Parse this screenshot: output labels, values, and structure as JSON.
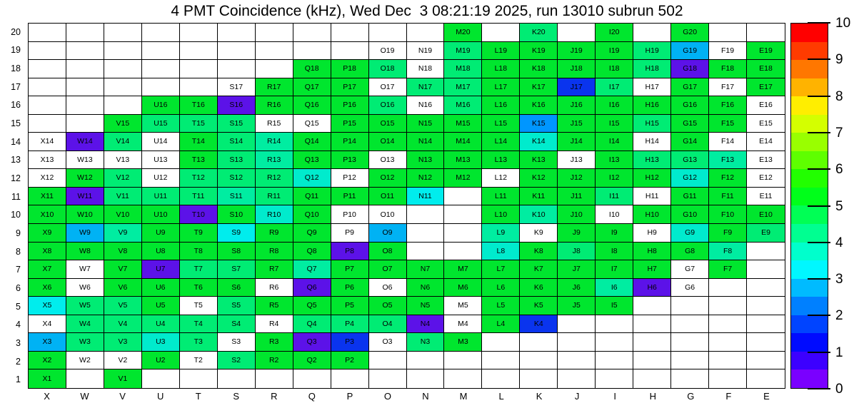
{
  "title": "4 PMT Coincidence (kHz), Wed Dec  3 08:21:19 2025, run 13010 subrun 502",
  "chart_data": {
    "type": "heatmap",
    "title": "4 PMT Coincidence (kHz), Wed Dec  3 08:21:19 2025, run 13010 subrun 502",
    "unit": "kHz",
    "columns": [
      "X",
      "W",
      "V",
      "U",
      "T",
      "S",
      "R",
      "Q",
      "P",
      "O",
      "N",
      "M",
      "L",
      "K",
      "J",
      "I",
      "H",
      "G",
      "F",
      "E"
    ],
    "rows": [
      20,
      19,
      18,
      17,
      16,
      15,
      14,
      13,
      12,
      11,
      10,
      9,
      8,
      7,
      6,
      5,
      4,
      3,
      2,
      1
    ],
    "cell_code_legend": {
      "": "empty bin (no tower)",
      "w": "white bin with label (zero / no data)",
      "g": "green",
      "s": "spring-green",
      "t": "teal-green",
      "q": "turquoise",
      "c": "cyan",
      "d": "deep-sky-blue",
      "o": "dodger-blue",
      "b": "blue",
      "p": "purple"
    },
    "palette": {
      "g": {
        "hex": "#00e62e",
        "approx_kHz": 5.2
      },
      "s": {
        "hex": "#00ec74",
        "approx_kHz": 4.5
      },
      "t": {
        "hex": "#00eda1",
        "approx_kHz": 4.0
      },
      "q": {
        "hex": "#00ebcd",
        "approx_kHz": 3.6
      },
      "c": {
        "hex": "#00eded",
        "approx_kHz": 3.2
      },
      "d": {
        "hex": "#00b2f4",
        "approx_kHz": 2.8
      },
      "o": {
        "hex": "#0096ff",
        "approx_kHz": 2.4
      },
      "b": {
        "hex": "#0a34ee",
        "approx_kHz": 1.5
      },
      "p": {
        "hex": "#5c12e8",
        "approx_kHz": 0.5
      }
    },
    "cells": [
      [
        "",
        "",
        "",
        "",
        "",
        "",
        "",
        "",
        "",
        "",
        "",
        "g",
        "",
        "s",
        "",
        "g",
        "",
        "g",
        "",
        ""
      ],
      [
        "",
        "",
        "",
        "",
        "",
        "",
        "",
        "",
        "",
        "w",
        "w",
        "s",
        "g",
        "g",
        "g",
        "g",
        "s",
        "d",
        "w",
        "g"
      ],
      [
        "",
        "",
        "",
        "",
        "",
        "",
        "",
        "g",
        "g",
        "s",
        "w",
        "s",
        "g",
        "g",
        "g",
        "g",
        "s",
        "p",
        "g",
        "g"
      ],
      [
        "",
        "",
        "",
        "",
        "",
        "w",
        "g",
        "g",
        "g",
        "w",
        "s",
        "s",
        "g",
        "g",
        "b",
        "s",
        "w",
        "g",
        "w",
        "g"
      ],
      [
        "",
        "",
        "",
        "g",
        "g",
        "p",
        "g",
        "g",
        "g",
        "s",
        "w",
        "s",
        "g",
        "g",
        "g",
        "g",
        "g",
        "g",
        "g",
        "w"
      ],
      [
        "",
        "",
        "g",
        "s",
        "s",
        "s",
        "w",
        "w",
        "g",
        "g",
        "g",
        "g",
        "g",
        "o",
        "g",
        "g",
        "s",
        "g",
        "g",
        "w"
      ],
      [
        "w",
        "p",
        "s",
        "w",
        "g",
        "s",
        "t",
        "g",
        "g",
        "g",
        "g",
        "g",
        "g",
        "q",
        "g",
        "g",
        "w",
        "g",
        "w",
        "w"
      ],
      [
        "w",
        "w",
        "w",
        "w",
        "g",
        "s",
        "t",
        "g",
        "g",
        "w",
        "g",
        "g",
        "g",
        "g",
        "w",
        "g",
        "s",
        "s",
        "t",
        "w"
      ],
      [
        "w",
        "g",
        "s",
        "w",
        "s",
        "s",
        "s",
        "q",
        "w",
        "g",
        "g",
        "g",
        "w",
        "g",
        "g",
        "g",
        "g",
        "q",
        "g",
        "w"
      ],
      [
        "g",
        "p",
        "s",
        "s",
        "s",
        "t",
        "s",
        "g",
        "g",
        "g",
        "c",
        "",
        "g",
        "g",
        "g",
        "s",
        "w",
        "g",
        "g",
        "w"
      ],
      [
        "g",
        "g",
        "g",
        "g",
        "p",
        "g",
        "q",
        "g",
        "w",
        "w",
        "",
        "",
        "g",
        "t",
        "g",
        "w",
        "g",
        "g",
        "g",
        "g"
      ],
      [
        "g",
        "d",
        "t",
        "g",
        "g",
        "c",
        "g",
        "g",
        "w",
        "d",
        "",
        "",
        "t",
        "w",
        "g",
        "g",
        "w",
        "q",
        "g",
        "s"
      ],
      [
        "g",
        "g",
        "g",
        "g",
        "g",
        "g",
        "g",
        "g",
        "p",
        "g",
        "",
        "",
        "q",
        "g",
        "s",
        "g",
        "g",
        "g",
        "t",
        ""
      ],
      [
        "g",
        "w",
        "g",
        "p",
        "s",
        "s",
        "g",
        "t",
        "g",
        "g",
        "g",
        "g",
        "g",
        "g",
        "g",
        "g",
        "g",
        "w",
        "g",
        ""
      ],
      [
        "g",
        "w",
        "g",
        "g",
        "g",
        "g",
        "w",
        "p",
        "g",
        "w",
        "g",
        "g",
        "g",
        "g",
        "g",
        "t",
        "p",
        "w",
        "",
        ""
      ],
      [
        "c",
        "s",
        "s",
        "g",
        "w",
        "s",
        "g",
        "g",
        "g",
        "g",
        "g",
        "w",
        "g",
        "g",
        "g",
        "g",
        "",
        "",
        "",
        ""
      ],
      [
        "w",
        "s",
        "s",
        "s",
        "s",
        "s",
        "w",
        "s",
        "s",
        "s",
        "p",
        "w",
        "g",
        "b",
        "",
        "",
        "",
        "",
        "",
        ""
      ],
      [
        "d",
        "s",
        "s",
        "q",
        "s",
        "w",
        "g",
        "p",
        "b",
        "w",
        "s",
        "g",
        "",
        "",
        "",
        "",
        "",
        "",
        "",
        ""
      ],
      [
        "g",
        "w",
        "w",
        "g",
        "w",
        "s",
        "g",
        "g",
        "g",
        "",
        "",
        "",
        "",
        "",
        "",
        "",
        "",
        "",
        "",
        ""
      ],
      [
        "g",
        "",
        "g",
        "",
        "",
        "",
        "",
        "",
        "",
        "",
        "",
        "",
        "",
        "",
        "",
        "",
        "",
        "",
        "",
        ""
      ]
    ],
    "colorbar": {
      "min": 0,
      "max": 10,
      "tick_labels_top_to_bottom": [
        "10",
        "9",
        "8",
        "7",
        "6",
        "5",
        "4",
        "3",
        "2",
        "1",
        "0"
      ],
      "bands_top_to_bottom": [
        "#ff0000",
        "#ff3b00",
        "#ff7700",
        "#ffb300",
        "#ffee00",
        "#d4ff00",
        "#99ff00",
        "#5eff00",
        "#22ff00",
        "#00ff1a",
        "#00ff55",
        "#00ff91",
        "#00ffcc",
        "#00f7ff",
        "#00bbff",
        "#0080ff",
        "#0044ff",
        "#000bff",
        "#3c00ff",
        "#7a00ff"
      ]
    }
  }
}
